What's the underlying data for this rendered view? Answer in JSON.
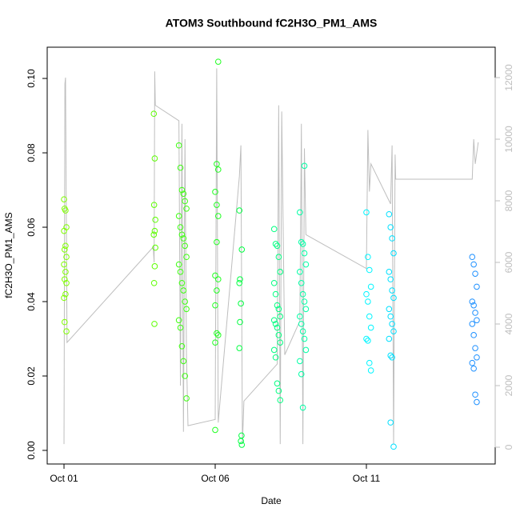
{
  "chart_data": {
    "type": "scatter",
    "title": "ATOM3 Southbound fC2H3O_PM1_AMS",
    "xlabel": "Date",
    "ylabel": "fC2H3O_PM1_AMS",
    "xlim": [
      -0.556,
      14.26
    ],
    "ylim": [
      -0.00366,
      0.1084
    ],
    "y2lim": [
      -545,
      12987
    ],
    "xticks": [
      {
        "value": 0,
        "label": "Oct 01"
      },
      {
        "value": 5,
        "label": "Oct 06"
      },
      {
        "value": 10,
        "label": "Oct 11"
      }
    ],
    "yticks": [
      {
        "value": 0,
        "label": "0.00"
      },
      {
        "value": 0.02,
        "label": "0.02"
      },
      {
        "value": 0.04,
        "label": "0.04"
      },
      {
        "value": 0.06,
        "label": "0.06"
      },
      {
        "value": 0.08,
        "label": "0.08"
      },
      {
        "value": 0.1,
        "label": "0.10"
      }
    ],
    "y2ticks": [
      0,
      2000,
      4000,
      6000,
      8000,
      10000,
      12000
    ],
    "series": [
      {
        "type": "line",
        "axis": "y2",
        "color": "#bebebe",
        "x": [
          0.0,
          0.03,
          0.05,
          0.1,
          2.95,
          2.98,
          3.0,
          3.02,
          3.8,
          3.85,
          3.9,
          3.95,
          4.0,
          4.05,
          4.1,
          5.0,
          5.05,
          5.1,
          5.8,
          5.85,
          5.9,
          5.95,
          7.05,
          7.1,
          7.15,
          7.2,
          7.3,
          7.8,
          7.85,
          7.9,
          7.95,
          8.0,
          10.0,
          10.05,
          10.1,
          10.15,
          10.8,
          10.85,
          10.9,
          10.95,
          10.97,
          13.5,
          13.55,
          13.6,
          13.7
        ],
        "values": [
          100,
          11800,
          12000,
          3400,
          6500,
          6000,
          12200,
          11100,
          10600,
          2000,
          10500,
          500,
          10000,
          3000,
          700,
          900,
          12300,
          800,
          8800,
          9800,
          100,
          1500,
          2700,
          11100,
          100,
          10900,
          3000,
          4100,
          10500,
          100,
          9700,
          6900,
          5800,
          10300,
          8300,
          9200,
          7900,
          9800,
          100,
          9500,
          8700,
          8700,
          10000,
          9200,
          9900
        ]
      },
      {
        "type": "scatter",
        "color": "#7fff00",
        "x": [
          0.0,
          0.02,
          0.05,
          0.08,
          0.0,
          0.05,
          0.02,
          0.08,
          0.0,
          0.05,
          0.02,
          0.08,
          0.05,
          0.0,
          0.02,
          0.08
        ],
        "values": [
          0.0675,
          0.065,
          0.0645,
          0.06,
          0.059,
          0.055,
          0.054,
          0.052,
          0.05,
          0.048,
          0.046,
          0.045,
          0.042,
          0.041,
          0.0345,
          0.032
        ]
      },
      {
        "type": "scatter",
        "color": "#5cff00",
        "x": [
          2.97,
          3.0,
          2.98,
          3.02,
          3.0,
          2.97,
          3.02,
          3.0,
          2.98,
          2.99
        ],
        "values": [
          0.0905,
          0.0785,
          0.066,
          0.062,
          0.059,
          0.058,
          0.0545,
          0.0495,
          0.045,
          0.034
        ]
      },
      {
        "type": "scatter",
        "color": "#3dff10",
        "x": [
          3.8,
          3.85,
          3.9,
          3.95,
          4.0,
          4.05,
          3.8,
          3.85,
          3.9,
          3.95,
          4.0,
          4.05,
          3.8,
          3.85,
          3.9,
          3.95,
          4.0,
          4.05,
          3.8,
          3.85,
          3.9,
          3.95,
          4.0,
          4.05
        ],
        "values": [
          0.082,
          0.076,
          0.07,
          0.069,
          0.067,
          0.065,
          0.063,
          0.06,
          0.058,
          0.057,
          0.055,
          0.052,
          0.05,
          0.048,
          0.045,
          0.043,
          0.04,
          0.038,
          0.035,
          0.033,
          0.028,
          0.024,
          0.02,
          0.014
        ]
      },
      {
        "type": "scatter",
        "color": "#1fff20",
        "x": [
          5.1,
          5.05,
          5.1,
          5.0,
          5.05,
          5.1,
          5.05,
          5.0,
          5.1,
          5.05,
          5.0,
          5.05,
          5.1,
          5.0,
          5.0
        ],
        "values": [
          0.1045,
          0.077,
          0.0755,
          0.0695,
          0.066,
          0.063,
          0.056,
          0.047,
          0.046,
          0.043,
          0.039,
          0.0315,
          0.031,
          0.029,
          0.0055
        ]
      },
      {
        "type": "scatter",
        "color": "#00ff40",
        "x": [
          5.8,
          5.88,
          5.82,
          5.8,
          5.85,
          5.82,
          5.8,
          5.87,
          5.85,
          5.88
        ],
        "values": [
          0.0645,
          0.054,
          0.046,
          0.045,
          0.0395,
          0.0345,
          0.0275,
          0.004,
          0.0025,
          0.0015
        ]
      },
      {
        "type": "scatter",
        "color": "#00ff80",
        "x": [
          6.95,
          7.0,
          7.05,
          7.1,
          7.15,
          6.95,
          7.0,
          7.05,
          7.1,
          7.15,
          6.95,
          7.0,
          7.05,
          7.1,
          7.15,
          6.95,
          7.0,
          7.05,
          7.1,
          7.15
        ],
        "values": [
          0.0595,
          0.0555,
          0.055,
          0.052,
          0.048,
          0.045,
          0.042,
          0.039,
          0.038,
          0.036,
          0.035,
          0.034,
          0.033,
          0.031,
          0.029,
          0.027,
          0.025,
          0.018,
          0.016,
          0.0135
        ]
      },
      {
        "type": "scatter",
        "color": "#00ffa5",
        "x": [
          7.95,
          7.8,
          7.85,
          7.9,
          7.95,
          8.0,
          7.8,
          7.85,
          7.9,
          7.95,
          8.0,
          7.8,
          7.85,
          7.9,
          7.95,
          8.0,
          7.8,
          7.85,
          7.9
        ],
        "values": [
          0.0765,
          0.064,
          0.056,
          0.0555,
          0.053,
          0.05,
          0.048,
          0.045,
          0.042,
          0.04,
          0.038,
          0.036,
          0.034,
          0.032,
          0.03,
          0.027,
          0.024,
          0.0205,
          0.0115
        ]
      },
      {
        "type": "scatter",
        "color": "#00f5ff",
        "x": [
          10.0,
          10.05,
          10.1,
          10.15,
          10.0,
          10.05,
          10.1,
          10.15,
          10.0,
          10.05,
          10.1,
          10.15
        ],
        "values": [
          0.064,
          0.052,
          0.0485,
          0.044,
          0.042,
          0.04,
          0.036,
          0.033,
          0.03,
          0.0295,
          0.0235,
          0.0215
        ]
      },
      {
        "type": "scatter",
        "color": "#00e0ff",
        "x": [
          10.75,
          10.8,
          10.85,
          10.9,
          10.75,
          10.8,
          10.85,
          10.9,
          10.75,
          10.8,
          10.85,
          10.9,
          10.75,
          10.8,
          10.85,
          10.8,
          10.9
        ],
        "values": [
          0.0635,
          0.06,
          0.057,
          0.053,
          0.048,
          0.046,
          0.043,
          0.041,
          0.038,
          0.036,
          0.034,
          0.032,
          0.03,
          0.0255,
          0.025,
          0.0075,
          0.001
        ]
      },
      {
        "type": "scatter",
        "color": "#1e90ff",
        "x": [
          13.5,
          13.55,
          13.6,
          13.65,
          13.5,
          13.55,
          13.6,
          13.65,
          13.5,
          13.55,
          13.6,
          13.65,
          13.5,
          13.55,
          13.6,
          13.65
        ],
        "values": [
          0.052,
          0.05,
          0.0475,
          0.044,
          0.04,
          0.039,
          0.037,
          0.035,
          0.034,
          0.031,
          0.0275,
          0.025,
          0.0235,
          0.022,
          0.015,
          0.013
        ]
      }
    ]
  }
}
